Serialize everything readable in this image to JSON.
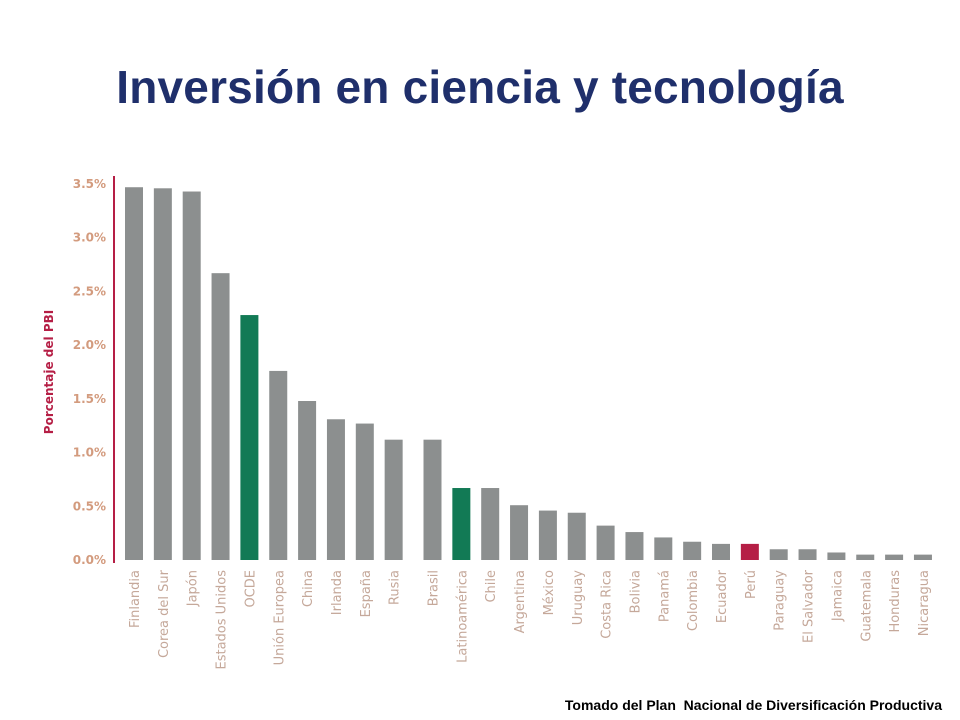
{
  "slide": {
    "title": "Inversión en ciencia y tecnología",
    "source": "Tomado del Plan  Nacional de Diversificación Productiva"
  },
  "colors": {
    "title": "#1f2f6b",
    "default_bar": "#8c8f8f",
    "highlight_green": "#127a55",
    "highlight_red": "#b51e45",
    "axis": "#b51e45",
    "axis_text": "#d39b7e",
    "category_text": "#c5a89a"
  },
  "chart_data": {
    "type": "bar",
    "title": "",
    "xlabel": "",
    "ylabel": "Porcentaje del PBI",
    "ylim": [
      0,
      3.5
    ],
    "yticks": [
      0,
      0.5,
      1.0,
      1.5,
      2.0,
      2.5,
      3.0,
      3.5
    ],
    "ytick_labels": [
      "0.0%",
      "0.5%",
      "1.0%",
      "1.5%",
      "2.0%",
      "2.5%",
      "3.0%",
      "3.5%"
    ],
    "grid": false,
    "categories": [
      "Finlandia",
      "Corea del Sur",
      "Japón",
      "Estados Unidos",
      "OCDE",
      "Unión Europea",
      "China",
      "Irlanda",
      "España",
      "Rusia",
      "Brasil",
      "Latinoamérica",
      "Chile",
      "Argentina",
      "México",
      "Uruguay",
      "Costa Rica",
      "Bolivia",
      "Panamá",
      "Colombia",
      "Ecuador",
      "Perú",
      "Paraguay",
      "El Salvador",
      "Jamaica",
      "Guatemala",
      "Honduras",
      "Nicaragua"
    ],
    "values": [
      3.47,
      3.46,
      3.43,
      2.67,
      2.28,
      1.76,
      1.48,
      1.31,
      1.27,
      1.12,
      1.12,
      0.67,
      0.67,
      0.51,
      0.46,
      0.44,
      0.32,
      0.26,
      0.21,
      0.17,
      0.15,
      0.15,
      0.1,
      0.1,
      0.07,
      0.05,
      0.05,
      0.05
    ],
    "highlight": {
      "OCDE": "green",
      "Latinoamérica": "green",
      "Perú": "red"
    },
    "group_gap_after": "Rusia"
  }
}
